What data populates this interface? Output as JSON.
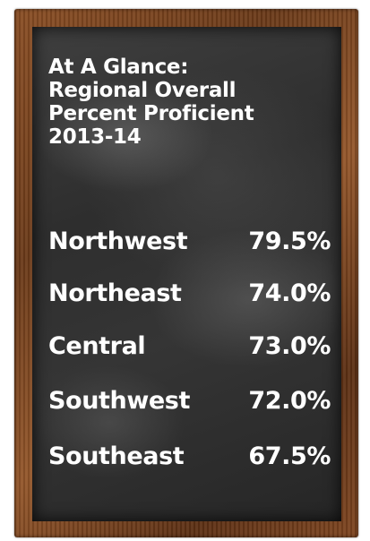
{
  "title": {
    "line1": "At A Glance:",
    "line2": "Regional Overall",
    "line3": "Percent Proficient",
    "line4": "2013-14"
  },
  "regions": [
    {
      "name": "Northwest",
      "value": "79.5%"
    },
    {
      "name": "Northeast",
      "value": "74.0%"
    },
    {
      "name": "Central",
      "value": "73.0%"
    },
    {
      "name": "Southwest",
      "value": "72.0%"
    },
    {
      "name": "Southeast",
      "value": "67.5%"
    }
  ],
  "colors": {
    "board": "#2f2f2f",
    "frame": "#7a421d",
    "text": "#ffffff"
  }
}
